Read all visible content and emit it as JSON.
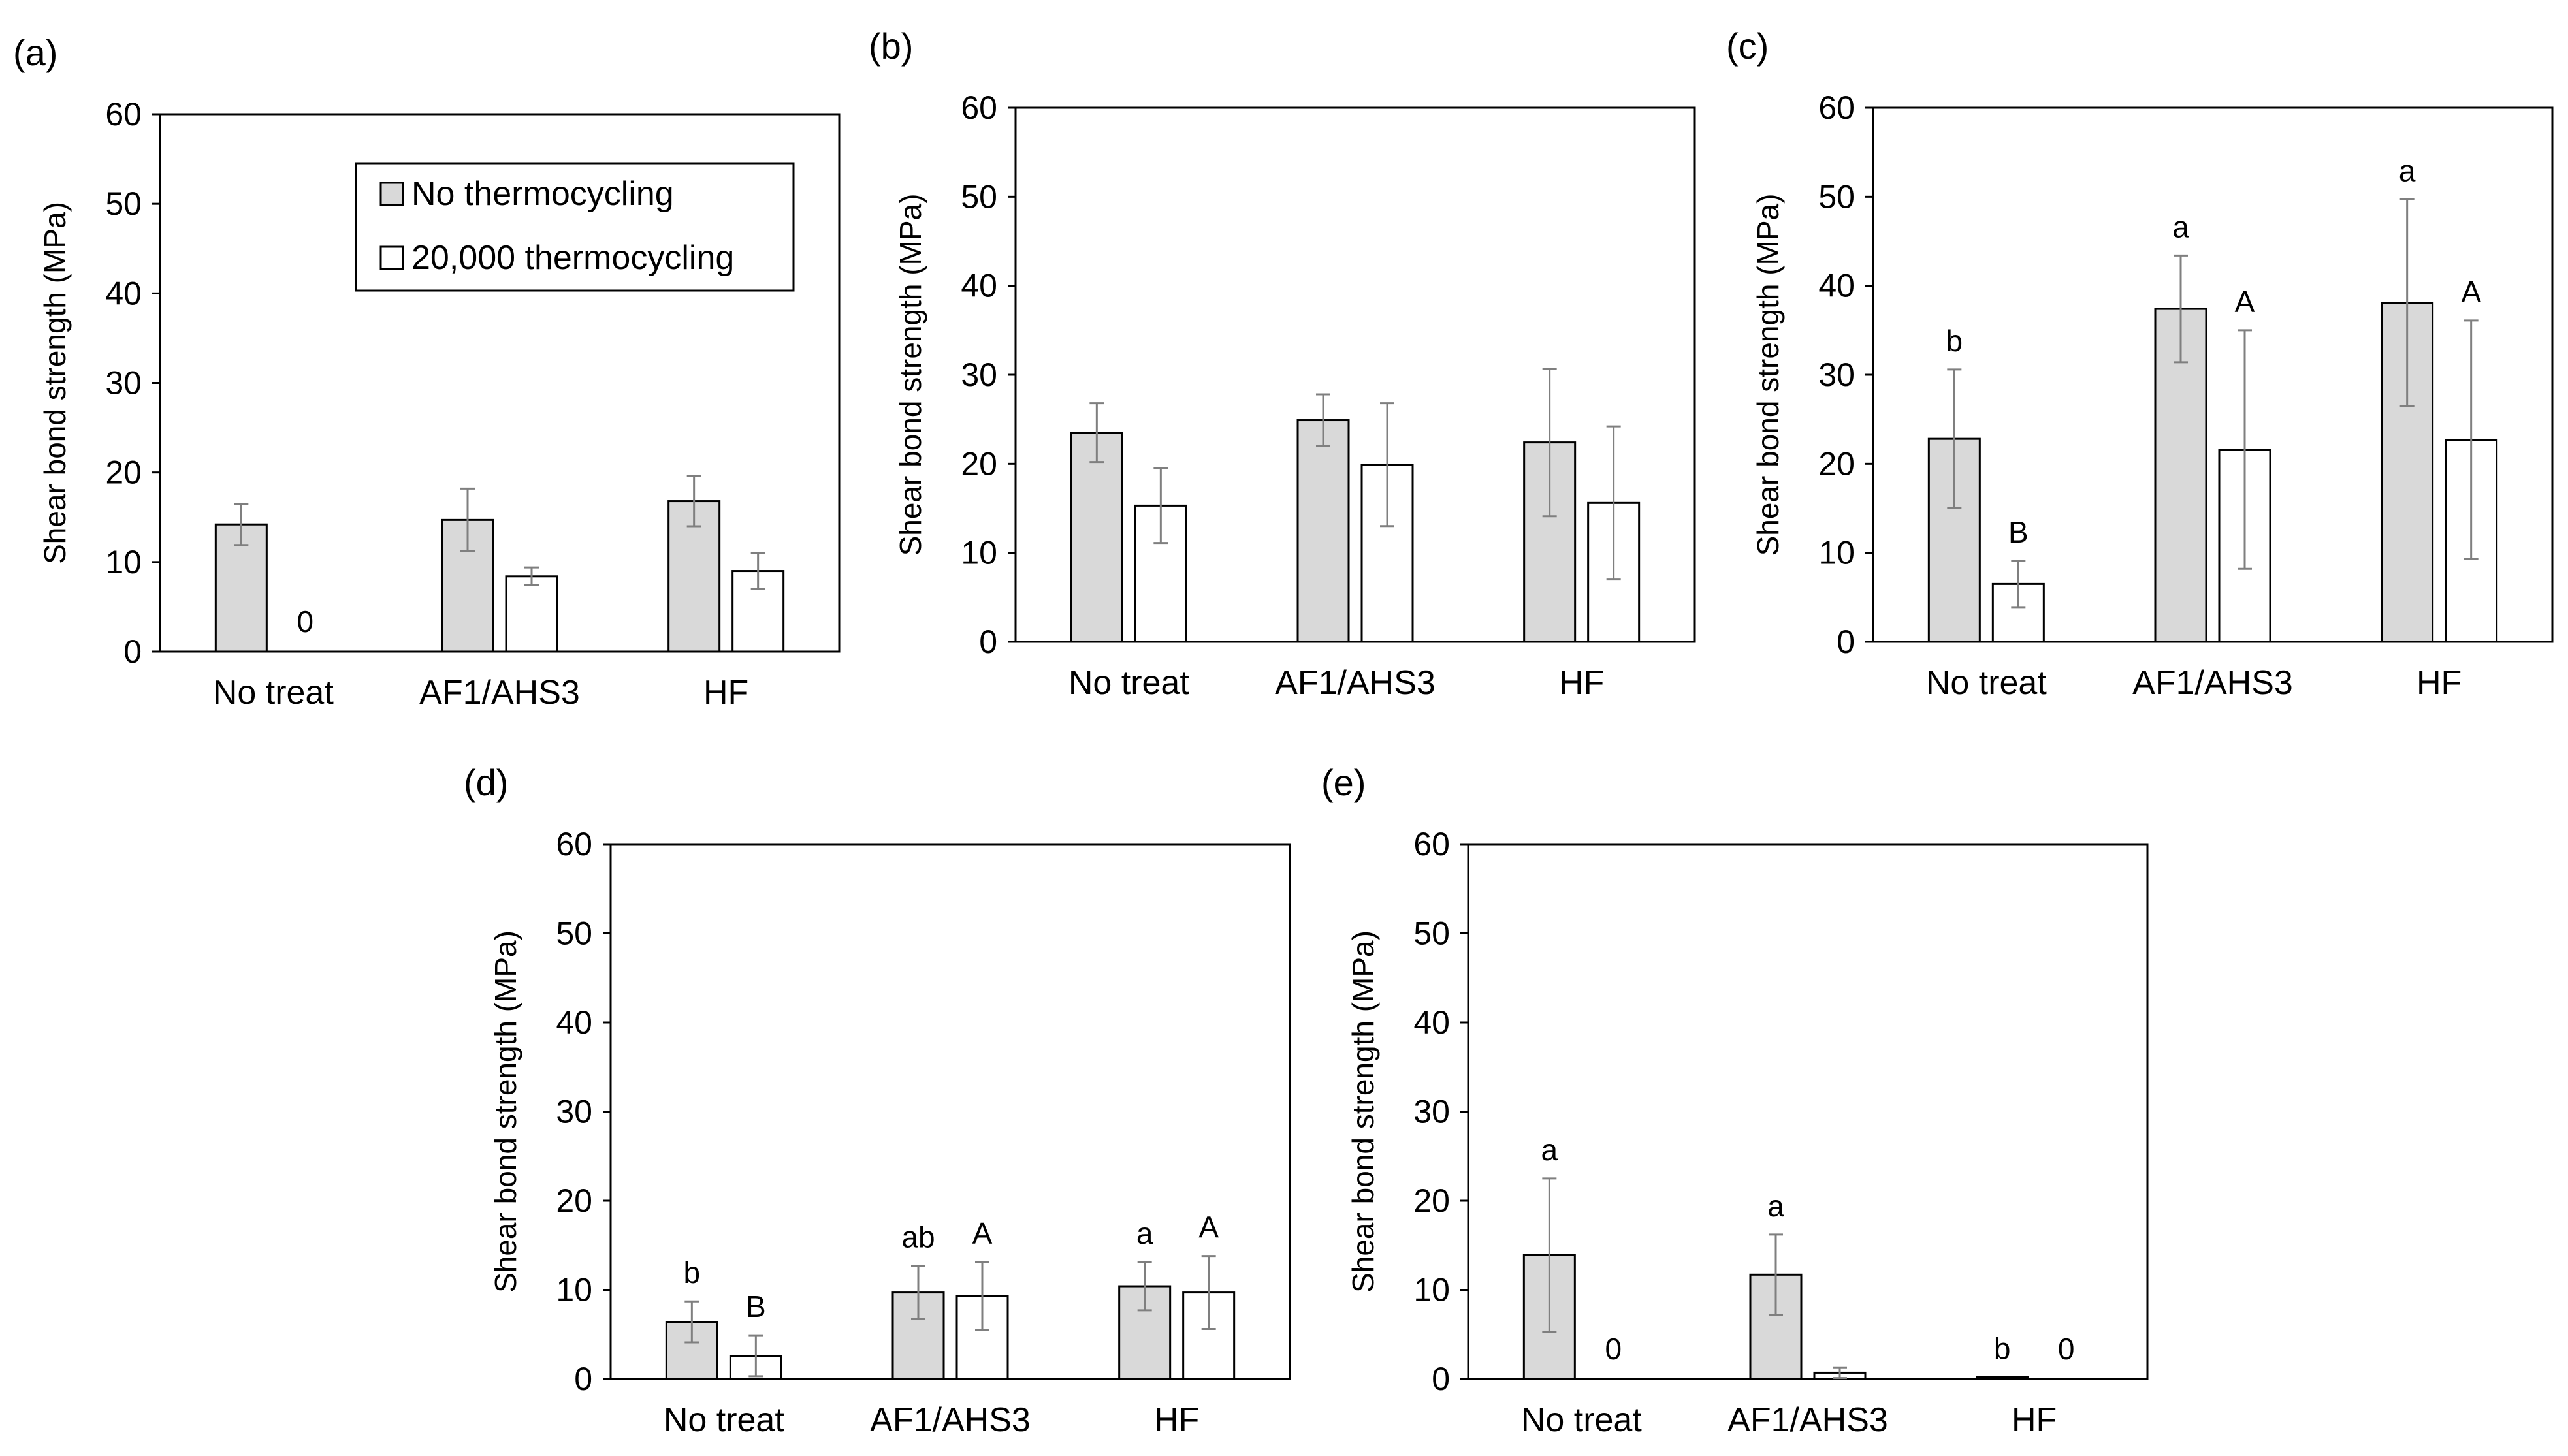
{
  "legend": {
    "entries": [
      "No thermocycling",
      "20,000 thermocycling"
    ],
    "panel": "(a)"
  },
  "colors": {
    "no_thermocycling": "#d9d9d9",
    "thermocycling": "#ffffff",
    "axis": "#000000",
    "error_bar": "#7f7f7f"
  },
  "chart_data": [
    {
      "type": "bar",
      "panel_label": "(a)",
      "categories": [
        "No treat",
        "AF1/AHS3",
        "HF"
      ],
      "ylabel": "Shear bond strength (MPa)",
      "ylim": [
        0,
        60
      ],
      "yticks": [
        0,
        10,
        20,
        30,
        40,
        50,
        60
      ],
      "series": [
        {
          "name": "No thermocycling",
          "values": [
            14.2,
            14.7,
            16.8
          ],
          "errors": [
            2.3,
            3.5,
            2.8
          ],
          "annotations": [
            "",
            "",
            ""
          ]
        },
        {
          "name": "20,000 thermocycling",
          "values": [
            0,
            8.4,
            9.0
          ],
          "errors": [
            0,
            1.0,
            2.0
          ],
          "annotations": [
            "0",
            "",
            ""
          ]
        }
      ]
    },
    {
      "type": "bar",
      "panel_label": "(b)",
      "categories": [
        "No treat",
        "AF1/AHS3",
        "HF"
      ],
      "ylabel": "Shear bond strength (MPa)",
      "ylim": [
        0,
        60
      ],
      "yticks": [
        0,
        10,
        20,
        30,
        40,
        50,
        60
      ],
      "series": [
        {
          "name": "No thermocycling",
          "values": [
            23.5,
            24.9,
            22.4
          ],
          "errors": [
            3.3,
            2.9,
            8.3
          ],
          "annotations": [
            "",
            "",
            ""
          ]
        },
        {
          "name": "20,000 thermocycling",
          "values": [
            15.3,
            19.9,
            15.6
          ],
          "errors": [
            4.2,
            6.9,
            8.6
          ],
          "annotations": [
            "",
            "",
            ""
          ]
        }
      ]
    },
    {
      "type": "bar",
      "panel_label": "(c)",
      "categories": [
        "No treat",
        "AF1/AHS3",
        "HF"
      ],
      "ylabel": "Shear bond strength (MPa)",
      "ylim": [
        0,
        60
      ],
      "yticks": [
        0,
        10,
        20,
        30,
        40,
        50,
        60
      ],
      "series": [
        {
          "name": "No thermocycling",
          "values": [
            22.8,
            37.4,
            38.1
          ],
          "errors": [
            7.8,
            6.0,
            11.6
          ],
          "annotations": [
            "b",
            "a",
            "a"
          ]
        },
        {
          "name": "20,000 thermocycling",
          "values": [
            6.5,
            21.6,
            22.7
          ],
          "errors": [
            2.6,
            13.4,
            13.4
          ],
          "annotations": [
            "B",
            "A",
            "A"
          ]
        }
      ]
    },
    {
      "type": "bar",
      "panel_label": "(d)",
      "categories": [
        "No treat",
        "AF1/AHS3",
        "HF"
      ],
      "ylabel": "Shear bond strength (MPa)",
      "ylim": [
        0,
        60
      ],
      "yticks": [
        0,
        10,
        20,
        30,
        40,
        50,
        60
      ],
      "series": [
        {
          "name": "No thermocycling",
          "values": [
            6.4,
            9.7,
            10.4
          ],
          "errors": [
            2.3,
            3.0,
            2.7
          ],
          "annotations": [
            "b",
            "ab",
            "a"
          ]
        },
        {
          "name": "20,000 thermocycling",
          "values": [
            2.6,
            9.3,
            9.7
          ],
          "errors": [
            2.3,
            3.8,
            4.1
          ],
          "annotations": [
            "B",
            "A",
            "A"
          ]
        }
      ]
    },
    {
      "type": "bar",
      "panel_label": "(e)",
      "categories": [
        "No treat",
        "AF1/AHS3",
        "HF"
      ],
      "ylabel": "Shear bond strength (MPa)",
      "ylim": [
        0,
        60
      ],
      "yticks": [
        0,
        10,
        20,
        30,
        40,
        50,
        60
      ],
      "series": [
        {
          "name": "No thermocycling",
          "values": [
            13.9,
            11.7,
            0.2
          ],
          "errors": [
            8.6,
            4.5,
            0
          ],
          "annotations": [
            "a",
            "a",
            "b"
          ]
        },
        {
          "name": "20,000 thermocycling",
          "values": [
            0,
            0.7,
            0
          ],
          "errors": [
            0,
            0.6,
            0
          ],
          "annotations": [
            "0",
            "",
            "0"
          ]
        }
      ]
    }
  ]
}
